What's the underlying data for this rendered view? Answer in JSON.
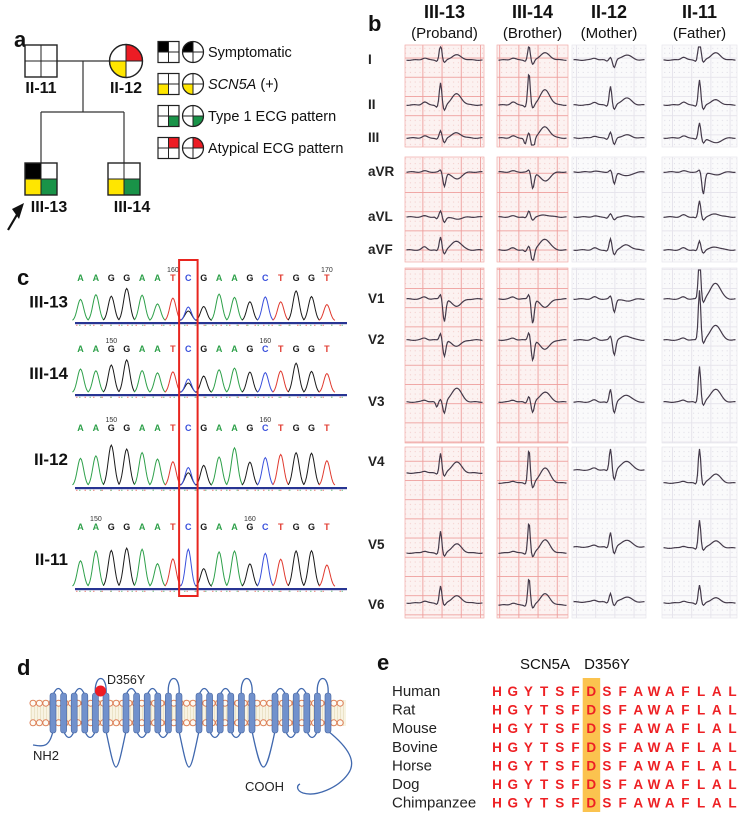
{
  "panel_labels": {
    "a": "a",
    "b": "b",
    "c": "c",
    "d": "d",
    "e": "e"
  },
  "colors": {
    "yellow": "#FFE600",
    "green": "#199348",
    "red": "#EC1C24",
    "black": "#000000",
    "white": "#ffffff"
  },
  "pedigree": {
    "individuals": [
      {
        "id": "II-11",
        "sex": "male",
        "fills": [
          "#ffffff",
          "#ffffff",
          "#ffffff",
          "#ffffff"
        ],
        "proband": false
      },
      {
        "id": "II-12",
        "sex": "female",
        "fills": [
          "#ffffff",
          "#EC1C24",
          "#FFE600",
          "#ffffff"
        ],
        "proband": false
      },
      {
        "id": "III-13",
        "sex": "male",
        "fills": [
          "#000000",
          "#ffffff",
          "#FFE600",
          "#199348"
        ],
        "proband": true
      },
      {
        "id": "III-14",
        "sex": "male",
        "fills": [
          "#ffffff",
          "#ffffff",
          "#FFE600",
          "#199348"
        ],
        "proband": false
      }
    ],
    "legend": [
      {
        "label": "Symptomatic",
        "italic": "",
        "fills": [
          "#000000",
          "#ffffff",
          "#ffffff",
          "#ffffff"
        ]
      },
      {
        "label": " (+)",
        "italic": "SCN5A",
        "fills": [
          "#ffffff",
          "#ffffff",
          "#FFE600",
          "#ffffff"
        ]
      },
      {
        "label": "Type 1 ECG pattern",
        "italic": "",
        "fills": [
          "#ffffff",
          "#ffffff",
          "#ffffff",
          "#199348"
        ]
      },
      {
        "label": "Atypical ECG pattern",
        "italic": "",
        "fills": [
          "#ffffff",
          "#EC1C24",
          "#ffffff",
          "#ffffff"
        ]
      }
    ]
  },
  "ecg": {
    "columns": [
      {
        "id": "III-13",
        "subtitle": "(Proband)",
        "paper": "pink"
      },
      {
        "id": "III-14",
        "subtitle": "(Brother)",
        "paper": "pink"
      },
      {
        "id": "II-12",
        "subtitle": "(Mother)",
        "paper": "gray"
      },
      {
        "id": "II-11",
        "subtitle": "(Father)",
        "paper": "gray"
      }
    ],
    "leads": [
      "I",
      "II",
      "III",
      "aVR",
      "aVL",
      "aVF",
      "V1",
      "V2",
      "V3",
      "V4",
      "V5",
      "V6"
    ],
    "traces": {
      "III-13": {
        "I": [
          2,
          1,
          16,
          3,
          5
        ],
        "II": [
          3,
          2,
          22,
          6,
          11
        ],
        "III": [
          2,
          1,
          7,
          5,
          5
        ],
        "aVR": [
          1,
          0,
          2,
          14,
          -7
        ],
        "aVL": [
          1,
          2,
          6,
          5,
          -2
        ],
        "aVF": [
          3,
          1,
          13,
          4,
          9
        ],
        "V1": [
          2,
          0,
          5,
          22,
          -7
        ],
        "V2": [
          2,
          0,
          7,
          16,
          -6
        ],
        "V3": [
          2,
          5,
          3,
          12,
          14
        ],
        "V4": [
          2,
          1,
          20,
          4,
          11
        ],
        "V5": [
          2,
          1,
          22,
          4,
          9
        ],
        "V6": [
          2,
          1,
          17,
          3,
          7
        ]
      },
      "III-14": {
        "I": [
          2,
          1,
          14,
          5,
          7
        ],
        "II": [
          3,
          2,
          32,
          4,
          15
        ],
        "III": [
          2,
          6,
          5,
          16,
          11
        ],
        "aVR": [
          1,
          0,
          2,
          16,
          -9
        ],
        "aVL": [
          1,
          1,
          6,
          3,
          2
        ],
        "aVF": [
          2,
          2,
          4,
          13,
          11
        ],
        "V1": [
          2,
          0,
          5,
          24,
          -8
        ],
        "V2": [
          2,
          0,
          8,
          20,
          -9
        ],
        "V3": [
          2,
          1,
          6,
          11,
          10
        ],
        "V4": [
          2,
          1,
          34,
          6,
          15
        ],
        "V5": [
          2,
          1,
          31,
          5,
          13
        ],
        "V6": [
          2,
          1,
          27,
          4,
          11
        ]
      },
      "II-12": {
        "I": [
          2,
          1,
          3,
          8,
          5
        ],
        "II": [
          3,
          1,
          19,
          5,
          7
        ],
        "III": [
          2,
          1,
          6,
          7,
          3
        ],
        "aVR": [
          1,
          0,
          2,
          12,
          -4
        ],
        "aVL": [
          1,
          1,
          3,
          3,
          1
        ],
        "aVF": [
          2,
          1,
          11,
          5,
          5
        ],
        "V1": [
          2,
          0,
          3,
          13,
          -2
        ],
        "V2": [
          2,
          0,
          4,
          15,
          4
        ],
        "V3": [
          2,
          1,
          13,
          11,
          7
        ],
        "V4": [
          2,
          1,
          22,
          10,
          9
        ],
        "V5": [
          2,
          1,
          15,
          7,
          7
        ],
        "V6": [
          2,
          1,
          9,
          4,
          5
        ]
      },
      "II-11": {
        "I": [
          3,
          1,
          28,
          3,
          7
        ],
        "II": [
          3,
          1,
          25,
          5,
          5
        ],
        "III": [
          2,
          1,
          15,
          5,
          -5
        ],
        "aVR": [
          1,
          0,
          2,
          22,
          -3
        ],
        "aVL": [
          2,
          1,
          16,
          3,
          3
        ],
        "aVF": [
          2,
          1,
          9,
          3,
          3
        ],
        "V1": [
          2,
          0,
          46,
          4,
          16
        ],
        "V2": [
          2,
          0,
          50,
          4,
          15
        ],
        "V3": [
          2,
          1,
          36,
          4,
          13
        ],
        "V4": [
          2,
          1,
          36,
          3,
          9
        ],
        "V5": [
          2,
          1,
          28,
          3,
          7
        ],
        "V6": [
          2,
          1,
          18,
          3,
          5
        ]
      }
    }
  },
  "sequencing": {
    "bases": "AAGGAATCGAAGCTGGT",
    "base_colors": {
      "A": "#2EA04A",
      "C": "#3A50DC",
      "G": "#1a1a1a",
      "T": "#E03A2F"
    },
    "variant_index": 7,
    "peak_heights": [
      24,
      27,
      31,
      34,
      28,
      21,
      23,
      14,
      17,
      27,
      29,
      21,
      25,
      24,
      31,
      27,
      20
    ],
    "rows": [
      {
        "id": "III-13",
        "numbers": {
          "6": "160",
          "16": "170"
        },
        "het": true
      },
      {
        "id": "III-14",
        "numbers": {
          "2": "150",
          "12": "160"
        },
        "het": true
      },
      {
        "id": "II-12",
        "numbers": {
          "2": "150",
          "12": "160"
        },
        "het": true
      },
      {
        "id": "II-11",
        "numbers": {
          "1": "150",
          "11": "160"
        },
        "het": false
      }
    ]
  },
  "protein": {
    "mutation_label": "D356Y",
    "n_label": "NH2",
    "c_label": "COOH",
    "domains": 4,
    "segments_per_domain": 6
  },
  "alignment": {
    "gene": "SCN5A",
    "variant": "D356Y",
    "species": [
      "Human",
      "Rat",
      "Mouse",
      "Bovine",
      "Horse",
      "Dog",
      "Chimpanzee"
    ],
    "sequence": "HGYTSFDSFAWAFLAL",
    "highlight_index": 6,
    "highlight_color": "#FBC34F",
    "letter_color": "#EE2024"
  }
}
